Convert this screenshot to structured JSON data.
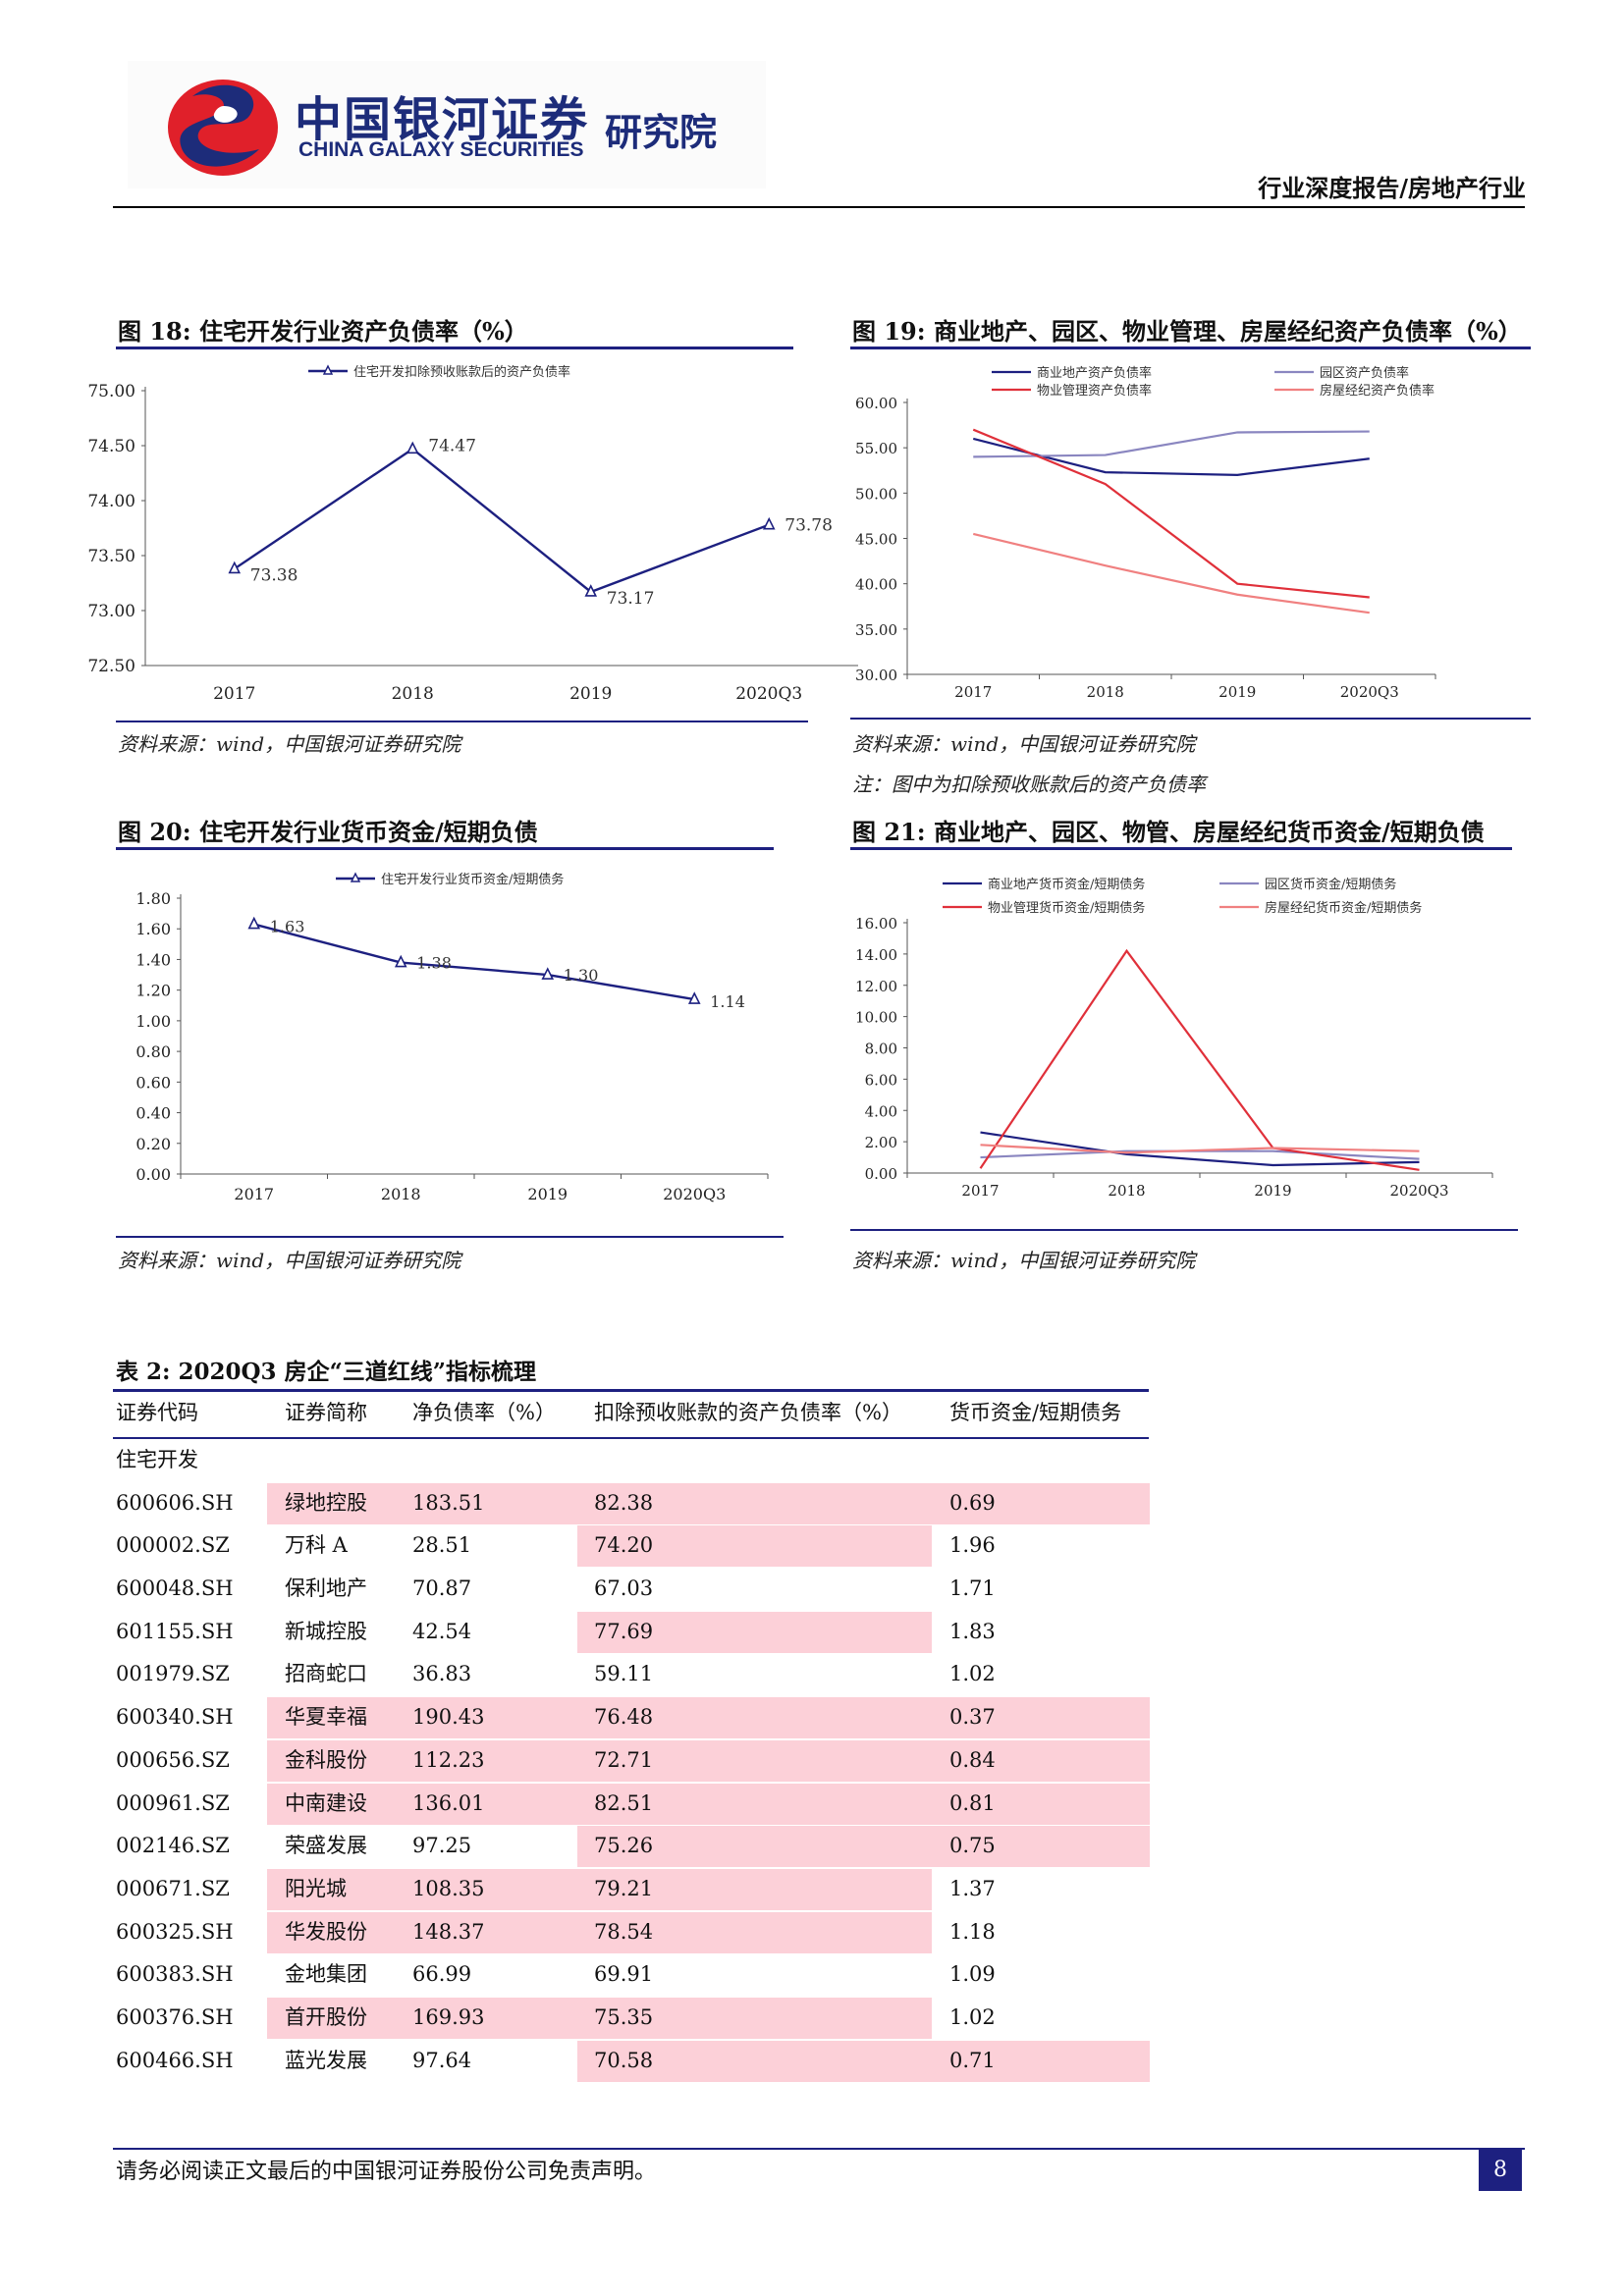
{
  "header": {
    "logo_cn": "中国银河证券",
    "logo_en": "CHINA GALAXY SECURITIES",
    "logo_institute": "研究院",
    "report_type": "行业深度报告/房地产行业"
  },
  "figures": {
    "fig18": {
      "title": "图 18:  住宅开发行业资产负债率（%）",
      "source": "资料来源：wind，中国银河证券研究院"
    },
    "fig19": {
      "title": "图 19:  商业地产、园区、物业管理、房屋经纪资产负债率（%）",
      "source": "资料来源：wind，中国银河证券研究院",
      "note": "注：图中为扣除预收账款后的资产负债率"
    },
    "fig20": {
      "title": "图 20:  住宅开发行业货币资金/短期负债",
      "source": "资料来源：wind，中国银河证券研究院"
    },
    "fig21": {
      "title": "图 21:  商业地产、园区、物管、房屋经纪货币资金/短期负债",
      "source": "资料来源：wind，中国银河证券研究院"
    }
  },
  "chart_data": [
    {
      "id": "fig18",
      "type": "line",
      "categories": [
        "2017",
        "2018",
        "2019",
        "2020Q3"
      ],
      "series": [
        {
          "name": "住宅开发扣除预收账款后的资产负债率",
          "values": [
            73.38,
            74.47,
            73.17,
            73.78
          ],
          "color": "#1d2080",
          "marker": "triangle"
        }
      ],
      "ylim": [
        72.5,
        75.0
      ],
      "yticks": [
        "72.50",
        "73.00",
        "73.50",
        "74.00",
        "74.50",
        "75.00"
      ],
      "data_labels": [
        "73.38",
        "74.47",
        "73.17",
        "73.78"
      ],
      "legend": "top"
    },
    {
      "id": "fig19",
      "type": "line",
      "categories": [
        "2017",
        "2018",
        "2019",
        "2020Q3"
      ],
      "series": [
        {
          "name": "商业地产资产负债率",
          "values": [
            56.0,
            52.3,
            52.0,
            53.8
          ],
          "color": "#1d2080"
        },
        {
          "name": "园区资产负债率",
          "values": [
            54.0,
            54.2,
            56.7,
            56.8
          ],
          "color": "#8a86c0"
        },
        {
          "name": "物业管理资产负债率",
          "values": [
            57.0,
            51.0,
            40.0,
            38.5
          ],
          "color": "#e0303a"
        },
        {
          "name": "房屋经纪资产负债率",
          "values": [
            45.5,
            42.0,
            38.8,
            36.8
          ],
          "color": "#f08080"
        }
      ],
      "ylim": [
        30,
        60
      ],
      "yticks": [
        "30.00",
        "35.00",
        "40.00",
        "45.00",
        "50.00",
        "55.00",
        "60.00"
      ],
      "legend": "top"
    },
    {
      "id": "fig20",
      "type": "line",
      "categories": [
        "2017",
        "2018",
        "2019",
        "2020Q3"
      ],
      "series": [
        {
          "name": "住宅开发行业货币资金/短期债务",
          "values": [
            1.63,
            1.38,
            1.3,
            1.14
          ],
          "color": "#1d2080",
          "marker": "triangle"
        }
      ],
      "ylim": [
        0,
        1.8
      ],
      "yticks": [
        "0.00",
        "0.20",
        "0.40",
        "0.60",
        "0.80",
        "1.00",
        "1.20",
        "1.40",
        "1.60",
        "1.80"
      ],
      "data_labels": [
        "1.63",
        "1.38",
        "1.30",
        "1.14"
      ],
      "legend": "top"
    },
    {
      "id": "fig21",
      "type": "line",
      "categories": [
        "2017",
        "2018",
        "2019",
        "2020Q3"
      ],
      "series": [
        {
          "name": "商业地产货币资金/短期债务",
          "values": [
            2.6,
            1.2,
            0.5,
            0.7
          ],
          "color": "#1d2080"
        },
        {
          "name": "园区货币资金/短期债务",
          "values": [
            1.0,
            1.4,
            1.4,
            0.9
          ],
          "color": "#8a86c0"
        },
        {
          "name": "物业管理货币资金/短期债务",
          "values": [
            0.3,
            14.2,
            1.6,
            0.2
          ],
          "color": "#e0303a"
        },
        {
          "name": "房屋经纪货币资金/短期债务",
          "values": [
            1.8,
            1.3,
            1.6,
            1.4
          ],
          "color": "#f08080"
        }
      ],
      "ylim": [
        0,
        16
      ],
      "yticks": [
        "0.00",
        "2.00",
        "4.00",
        "6.00",
        "8.00",
        "10.00",
        "12.00",
        "14.00",
        "16.00"
      ],
      "legend": "top"
    }
  ],
  "table": {
    "title": "表 2:  2020Q3 房企“三道红线”指标梳理",
    "headers": [
      "证券代码",
      "证券简称",
      "净负债率（%）",
      "扣除预收账款的资产负债率（%）",
      "货币资金/短期债务"
    ],
    "section_label": "住宅开发",
    "rows": [
      {
        "code": "600606.SH",
        "name": "绿地控股",
        "net_debt": "183.51",
        "debt_ratio": "82.38",
        "cash_ratio": "0.69",
        "hl": [
          true,
          true,
          true
        ]
      },
      {
        "code": "000002.SZ",
        "name": "万科 A",
        "net_debt": "28.51",
        "debt_ratio": "74.20",
        "cash_ratio": "1.96",
        "hl": [
          false,
          true,
          false
        ]
      },
      {
        "code": "600048.SH",
        "name": "保利地产",
        "net_debt": "70.87",
        "debt_ratio": "67.03",
        "cash_ratio": "1.71",
        "hl": [
          false,
          false,
          false
        ]
      },
      {
        "code": "601155.SH",
        "name": "新城控股",
        "net_debt": "42.54",
        "debt_ratio": "77.69",
        "cash_ratio": "1.83",
        "hl": [
          false,
          true,
          false
        ]
      },
      {
        "code": "001979.SZ",
        "name": "招商蛇口",
        "net_debt": "36.83",
        "debt_ratio": "59.11",
        "cash_ratio": "1.02",
        "hl": [
          false,
          false,
          false
        ]
      },
      {
        "code": "600340.SH",
        "name": "华夏幸福",
        "net_debt": "190.43",
        "debt_ratio": "76.48",
        "cash_ratio": "0.37",
        "hl": [
          true,
          true,
          true
        ]
      },
      {
        "code": "000656.SZ",
        "name": "金科股份",
        "net_debt": "112.23",
        "debt_ratio": "72.71",
        "cash_ratio": "0.84",
        "hl": [
          true,
          true,
          true
        ]
      },
      {
        "code": "000961.SZ",
        "name": "中南建设",
        "net_debt": "136.01",
        "debt_ratio": "82.51",
        "cash_ratio": "0.81",
        "hl": [
          true,
          true,
          true
        ]
      },
      {
        "code": "002146.SZ",
        "name": "荣盛发展",
        "net_debt": "97.25",
        "debt_ratio": "75.26",
        "cash_ratio": "0.75",
        "hl": [
          false,
          true,
          true
        ]
      },
      {
        "code": "000671.SZ",
        "name": "阳光城",
        "net_debt": "108.35",
        "debt_ratio": "79.21",
        "cash_ratio": "1.37",
        "hl": [
          true,
          true,
          false
        ]
      },
      {
        "code": "600325.SH",
        "name": "华发股份",
        "net_debt": "148.37",
        "debt_ratio": "78.54",
        "cash_ratio": "1.18",
        "hl": [
          true,
          true,
          false
        ]
      },
      {
        "code": "600383.SH",
        "name": "金地集团",
        "net_debt": "66.99",
        "debt_ratio": "69.91",
        "cash_ratio": "1.09",
        "hl": [
          false,
          false,
          false
        ]
      },
      {
        "code": "600376.SH",
        "name": "首开股份",
        "net_debt": "169.93",
        "debt_ratio": "75.35",
        "cash_ratio": "1.02",
        "hl": [
          true,
          true,
          false
        ]
      },
      {
        "code": "600466.SH",
        "name": "蓝光发展",
        "net_debt": "97.64",
        "debt_ratio": "70.58",
        "cash_ratio": "0.71",
        "hl": [
          false,
          true,
          true
        ]
      }
    ]
  },
  "footer": {
    "disclaimer": "请务必阅读正文最后的中国银河证券股份公司免责声明。",
    "page_number": "8"
  },
  "colors": {
    "navy": "#1d2080",
    "logo_red": "#e0202a",
    "highlight": "#fcd0d8"
  }
}
